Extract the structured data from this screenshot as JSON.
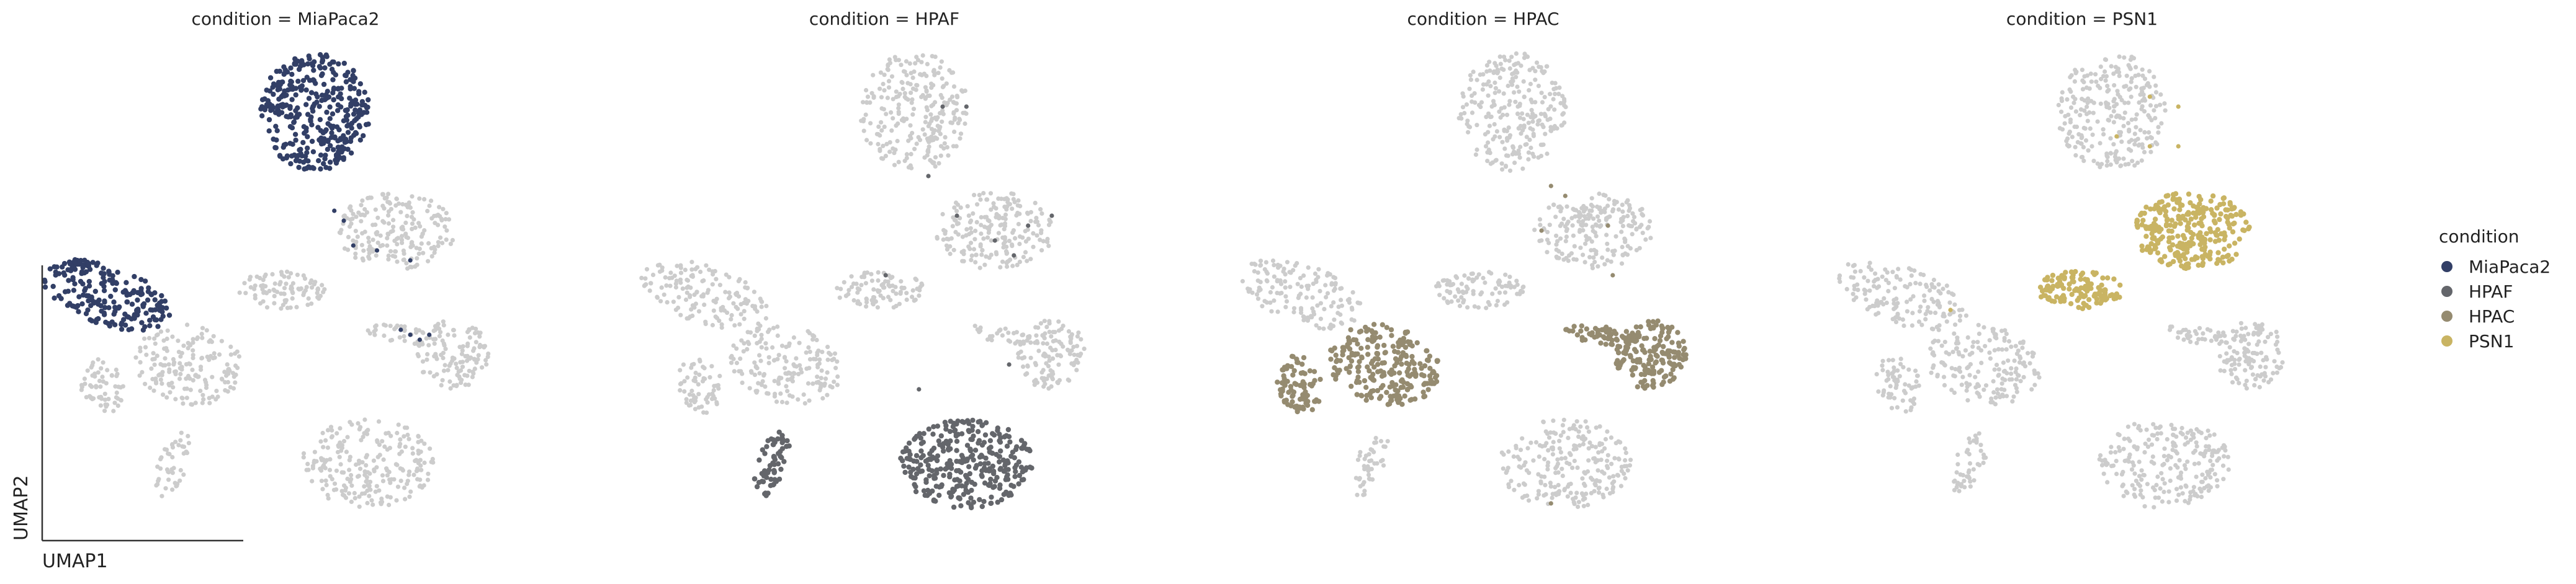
{
  "chart_data": {
    "type": "scatter",
    "facet_variable": "condition",
    "panel_title_template": "condition = {value}",
    "xlabel": "UMAP1",
    "ylabel": "UMAP2",
    "background_color": "#cccccc",
    "grid": false,
    "legend": {
      "title": "condition",
      "placement": "right",
      "entries": [
        {
          "name": "MiaPaca2",
          "color": "#323f66"
        },
        {
          "name": "HPAF",
          "color": "#64666b"
        },
        {
          "name": "HPAC",
          "color": "#958b70"
        },
        {
          "name": "PSN1",
          "color": "#c9b463"
        }
      ]
    },
    "clusters": [
      {
        "id": "A",
        "cx": 0.54,
        "cy": 0.85,
        "rx": 0.115,
        "ry": 0.12,
        "angle": 0,
        "n": 260
      },
      {
        "id": "B",
        "cx": 0.71,
        "cy": 0.61,
        "rx": 0.125,
        "ry": 0.078,
        "angle": 0,
        "n": 200
      },
      {
        "id": "C",
        "cx": 0.47,
        "cy": 0.49,
        "rx": 0.095,
        "ry": 0.038,
        "angle": 0,
        "n": 90
      },
      {
        "id": "D",
        "cx": 0.1,
        "cy": 0.48,
        "rx": 0.14,
        "ry": 0.06,
        "angle": -18,
        "n": 150
      },
      {
        "id": "E",
        "cx": 0.09,
        "cy": 0.3,
        "rx": 0.045,
        "ry": 0.06,
        "angle": 20,
        "n": 60
      },
      {
        "id": "F",
        "cx": 0.27,
        "cy": 0.34,
        "rx": 0.12,
        "ry": 0.08,
        "angle": -10,
        "n": 170
      },
      {
        "id": "G",
        "cx": 0.83,
        "cy": 0.36,
        "rx": 0.075,
        "ry": 0.07,
        "angle": 0,
        "n": 120
      },
      {
        "id": "H",
        "cx": 0.72,
        "cy": 0.4,
        "rx": 0.07,
        "ry": 0.018,
        "angle": -8,
        "n": 35
      },
      {
        "id": "I",
        "cx": 0.24,
        "cy": 0.14,
        "rx": 0.03,
        "ry": 0.07,
        "angle": -20,
        "n": 45
      },
      {
        "id": "J",
        "cx": 0.65,
        "cy": 0.14,
        "rx": 0.14,
        "ry": 0.09,
        "angle": 0,
        "n": 230
      }
    ],
    "panels": [
      {
        "value": "MiaPaca2",
        "clusters": [
          "A",
          "D"
        ],
        "sparse": [
          {
            "x": 0.62,
            "y": 0.58
          },
          {
            "x": 0.67,
            "y": 0.57
          },
          {
            "x": 0.74,
            "y": 0.55
          },
          {
            "x": 0.6,
            "y": 0.63
          },
          {
            "x": 0.72,
            "y": 0.41
          },
          {
            "x": 0.74,
            "y": 0.4
          },
          {
            "x": 0.76,
            "y": 0.39
          },
          {
            "x": 0.78,
            "y": 0.4
          },
          {
            "x": 0.58,
            "y": 0.65
          }
        ]
      },
      {
        "value": "HPAF",
        "clusters": [
          "I",
          "J"
        ],
        "sparse": [
          {
            "x": 0.6,
            "y": 0.86
          },
          {
            "x": 0.65,
            "y": 0.86
          },
          {
            "x": 0.57,
            "y": 0.72
          },
          {
            "x": 0.63,
            "y": 0.64
          },
          {
            "x": 0.71,
            "y": 0.59
          },
          {
            "x": 0.78,
            "y": 0.62
          },
          {
            "x": 0.83,
            "y": 0.64
          },
          {
            "x": 0.75,
            "y": 0.56
          },
          {
            "x": 0.48,
            "y": 0.52
          },
          {
            "x": 0.74,
            "y": 0.34
          },
          {
            "x": 0.55,
            "y": 0.29
          }
        ]
      },
      {
        "value": "HPAC",
        "clusters": [
          "E",
          "F",
          "G",
          "H"
        ],
        "sparse": [
          {
            "x": 0.62,
            "y": 0.7
          },
          {
            "x": 0.65,
            "y": 0.68
          },
          {
            "x": 0.6,
            "y": 0.61
          },
          {
            "x": 0.74,
            "y": 0.62
          },
          {
            "x": 0.75,
            "y": 0.52
          },
          {
            "x": 0.62,
            "y": 0.06
          }
        ]
      },
      {
        "value": "PSN1",
        "clusters": [
          "B",
          "C"
        ],
        "sparse": [
          {
            "x": 0.55,
            "y": 0.8
          },
          {
            "x": 0.62,
            "y": 0.78
          },
          {
            "x": 0.68,
            "y": 0.78
          },
          {
            "x": 0.68,
            "y": 0.86
          },
          {
            "x": 0.62,
            "y": 0.88
          },
          {
            "x": 0.2,
            "y": 0.45
          }
        ]
      }
    ]
  }
}
